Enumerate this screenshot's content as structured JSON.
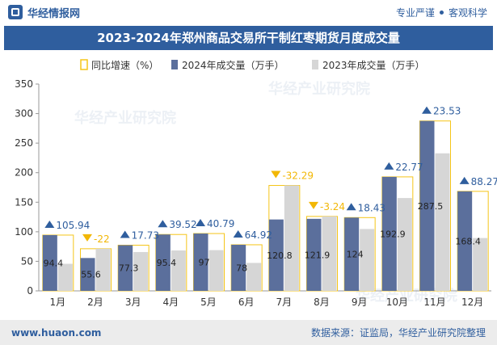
{
  "header": {
    "brand": "华经情报网",
    "motto_left": "专业严谨",
    "motto_right": "客观科学"
  },
  "title": "2023-2024年郑州商品交易所干制红枣期货月度成交量",
  "legend": {
    "growth": "同比增速（%）",
    "s2024": "2024年成交量（万手）",
    "s2023": "2023年成交量（万手）"
  },
  "watermark": "华经产业研究院",
  "footer": {
    "site": "www.huaon.com",
    "source": "数据来源：证监局，华经产业研究院整理"
  },
  "colors": {
    "brand": "#2f5e9e",
    "bar2024": "#5b6f9c",
    "bar2023": "#d6d6d6",
    "growth_outline": "#f5c518",
    "up": "#2f5e9e",
    "down": "#f2b705"
  },
  "chart_data": {
    "type": "bar",
    "categories": [
      "1月",
      "2月",
      "3月",
      "4月",
      "5月",
      "6月",
      "7月",
      "8月",
      "9月",
      "10月",
      "11月",
      "12月"
    ],
    "series": [
      {
        "name": "2024年成交量（万手）",
        "values": [
          94.4,
          55.6,
          77.3,
          95.4,
          97,
          78,
          120.8,
          121.9,
          124,
          192.9,
          287.5,
          168.4
        ]
      },
      {
        "name": "2023年成交量（万手）",
        "values": [
          45.8,
          71.3,
          65.7,
          68.4,
          68.9,
          47.3,
          178.4,
          126,
          104.7,
          157.1,
          232.7,
          89.4
        ]
      }
    ],
    "growth": {
      "name": "同比增速（%）",
      "labels": [
        "105.94",
        "-22",
        "17.73",
        "39.52",
        "40.79",
        "64.92",
        "-32.29",
        "-3.24",
        "18.43",
        "22.77",
        "23.53",
        "88.27"
      ],
      "values": [
        105.94,
        -22,
        17.73,
        39.52,
        40.79,
        64.92,
        -32.29,
        -3.24,
        18.43,
        22.77,
        23.53,
        88.27
      ]
    },
    "ylim": [
      0,
      350
    ],
    "yticks": [
      "0",
      "50",
      "100",
      "150",
      "200",
      "250",
      "300",
      "350"
    ],
    "grid": false,
    "legend_position": "top"
  }
}
